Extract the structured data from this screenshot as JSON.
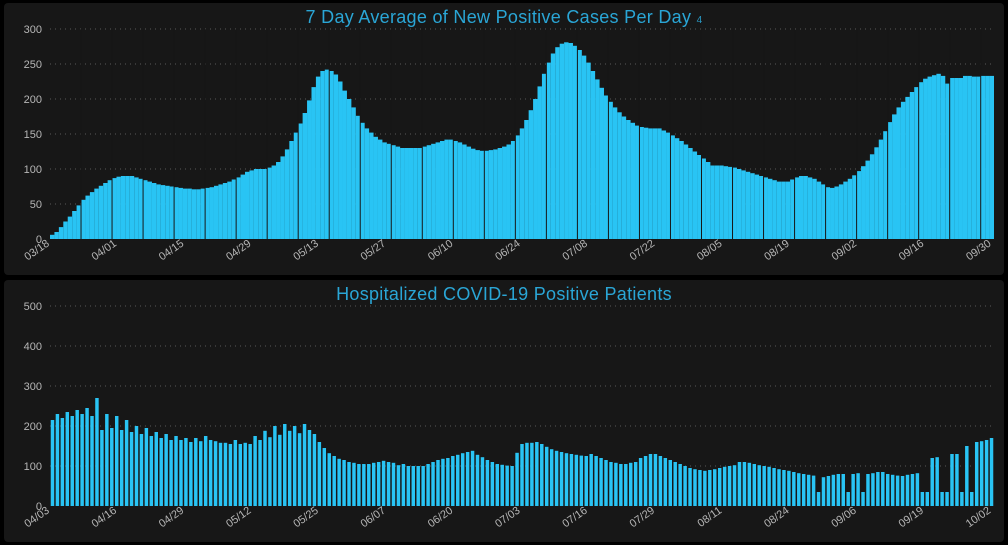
{
  "background_color": "#000000",
  "panel_background": "#171717",
  "title_color": "#2aa6d6",
  "bar_color": "#29c4f4",
  "grid_color": "#5a5a5a",
  "axis_label_color": "#b6b6b6",
  "vertical_separator_color": "#171717",
  "chart1": {
    "title": "7 Day Average of New Positive Cases Per Day",
    "subscript": "4",
    "type": "bar",
    "ylim": [
      0,
      300
    ],
    "ytick_step": 50,
    "x_labels": [
      "03/18",
      "04/01",
      "04/15",
      "04/29",
      "05/13",
      "05/27",
      "06/10",
      "06/24",
      "07/08",
      "07/22",
      "08/05",
      "08/19",
      "09/02",
      "09/16",
      "09/30"
    ],
    "x_label_interval_days": 14,
    "vertical_separator_every": 7,
    "x_label_rotation_deg": -35,
    "values": [
      6,
      10,
      17,
      25,
      32,
      40,
      48,
      56,
      62,
      67,
      72,
      76,
      80,
      84,
      87,
      89,
      90,
      90,
      90,
      88,
      86,
      84,
      82,
      80,
      78,
      77,
      76,
      75,
      74,
      73,
      72,
      72,
      71,
      71,
      72,
      73,
      74,
      76,
      78,
      80,
      82,
      85,
      88,
      92,
      96,
      98,
      100,
      100,
      100,
      102,
      105,
      110,
      118,
      128,
      140,
      152,
      165,
      180,
      198,
      217,
      232,
      240,
      242,
      240,
      235,
      225,
      212,
      200,
      188,
      176,
      166,
      158,
      152,
      146,
      142,
      138,
      136,
      134,
      132,
      130,
      130,
      130,
      130,
      130,
      132,
      134,
      136,
      138,
      140,
      142,
      142,
      140,
      138,
      135,
      132,
      129,
      127,
      126,
      126,
      127,
      128,
      130,
      132,
      135,
      140,
      148,
      158,
      170,
      184,
      200,
      218,
      236,
      252,
      265,
      274,
      279,
      281,
      280,
      276,
      270,
      262,
      252,
      240,
      228,
      216,
      205,
      196,
      188,
      181,
      175,
      170,
      166,
      162,
      160,
      159,
      158,
      158,
      158,
      155,
      152,
      148,
      144,
      140,
      135,
      130,
      125,
      120,
      115,
      110,
      105,
      105,
      105,
      104,
      103,
      102,
      100,
      98,
      96,
      94,
      92,
      90,
      88,
      86,
      84,
      82,
      82,
      82,
      85,
      88,
      90,
      90,
      88,
      86,
      82,
      78,
      74,
      73,
      75,
      78,
      82,
      86,
      91,
      97,
      104,
      112,
      121,
      131,
      142,
      154,
      167,
      178,
      188,
      196,
      203,
      210,
      217,
      224,
      229,
      232,
      234,
      236,
      233,
      222,
      230,
      230,
      230,
      233,
      233,
      232,
      232,
      233,
      233,
      233
    ]
  },
  "chart2": {
    "title": "Hospitalized COVID-19 Positive Patients",
    "type": "bar",
    "ylim": [
      0,
      500
    ],
    "ytick_step": 100,
    "x_labels": [
      "04/03",
      "04/16",
      "04/29",
      "05/12",
      "05/25",
      "06/07",
      "06/20",
      "07/03",
      "07/16",
      "07/29",
      "08/11",
      "08/24",
      "09/06",
      "09/19",
      "10/02"
    ],
    "x_label_interval_days": 13,
    "vertical_separator_every": 0,
    "bar_gap_ratio": 0.3,
    "x_label_rotation_deg": -35,
    "values": [
      215,
      230,
      220,
      235,
      225,
      240,
      230,
      245,
      225,
      270,
      190,
      230,
      195,
      225,
      190,
      215,
      185,
      200,
      180,
      195,
      175,
      185,
      170,
      180,
      165,
      175,
      165,
      170,
      160,
      170,
      162,
      175,
      165,
      162,
      158,
      158,
      155,
      165,
      155,
      158,
      155,
      175,
      165,
      188,
      172,
      200,
      178,
      205,
      188,
      200,
      182,
      205,
      190,
      180,
      160,
      145,
      132,
      125,
      118,
      115,
      110,
      108,
      105,
      105,
      105,
      108,
      110,
      113,
      110,
      108,
      102,
      105,
      100,
      100,
      100,
      100,
      105,
      110,
      115,
      118,
      120,
      125,
      128,
      132,
      135,
      138,
      128,
      122,
      115,
      110,
      105,
      103,
      101,
      100,
      133,
      155,
      158,
      158,
      160,
      155,
      148,
      142,
      138,
      135,
      132,
      130,
      128,
      126,
      125,
      130,
      125,
      120,
      115,
      110,
      108,
      105,
      105,
      108,
      110,
      120,
      125,
      130,
      130,
      125,
      120,
      115,
      110,
      105,
      100,
      95,
      92,
      90,
      88,
      90,
      92,
      95,
      98,
      100,
      102,
      110,
      110,
      108,
      105,
      102,
      100,
      98,
      95,
      92,
      90,
      88,
      85,
      82,
      80,
      78,
      76,
      35,
      72,
      75,
      78,
      80,
      80,
      35,
      80,
      82,
      35,
      80,
      82,
      85,
      85,
      80,
      78,
      76,
      75,
      78,
      80,
      82,
      35,
      35,
      120,
      122,
      35,
      35,
      130,
      130,
      35,
      150,
      35,
      160,
      162,
      165,
      170
    ]
  }
}
